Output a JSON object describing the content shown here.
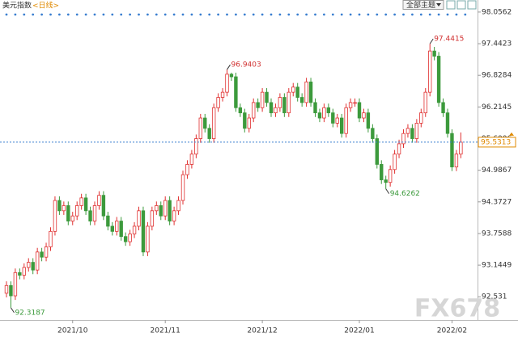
{
  "chart_data": {
    "type": "candlestick",
    "title": "美元指数",
    "subtitle": "<日线>",
    "menu": "全部主题",
    "watermark": "FX678",
    "categories": [
      null,
      null,
      null,
      null,
      null,
      null,
      null,
      null,
      null,
      null,
      null,
      null,
      null,
      null,
      null,
      "2021/10",
      null,
      null,
      null,
      null,
      null,
      null,
      null,
      null,
      null,
      null,
      null,
      null,
      null,
      null,
      null,
      null,
      null,
      null,
      null,
      null,
      "2021/11",
      null,
      null,
      null,
      null,
      null,
      null,
      null,
      null,
      null,
      null,
      null,
      null,
      null,
      null,
      null,
      null,
      null,
      null,
      null,
      null,
      null,
      "2021/12",
      null,
      null,
      null,
      null,
      null,
      null,
      null,
      null,
      null,
      null,
      null,
      null,
      null,
      null,
      null,
      null,
      null,
      null,
      null,
      null,
      null,
      "2022/01",
      null,
      null,
      null,
      null,
      null,
      null,
      null,
      null,
      null,
      null,
      null,
      null,
      null,
      null,
      null,
      null,
      null,
      null,
      null,
      null,
      "2022/02",
      null,
      null
    ],
    "open": [
      92.6,
      92.75,
      92.55,
      93.0,
      92.95,
      93.1,
      93.2,
      93.05,
      93.4,
      93.3,
      93.5,
      93.8,
      94.4,
      94.2,
      94.3,
      94.0,
      94.1,
      94.3,
      94.45,
      94.2,
      94.0,
      94.3,
      94.5,
      94.1,
      93.9,
      93.8,
      94.0,
      93.7,
      93.6,
      93.75,
      93.9,
      94.2,
      93.4,
      93.9,
      94.2,
      94.3,
      94.1,
      94.4,
      94.0,
      94.2,
      94.4,
      94.9,
      95.1,
      95.3,
      95.6,
      96.0,
      95.8,
      95.6,
      96.2,
      96.4,
      96.5,
      96.85,
      96.8,
      96.2,
      96.1,
      95.8,
      96.0,
      96.3,
      96.2,
      96.5,
      96.3,
      96.1,
      96.2,
      96.4,
      96.1,
      96.5,
      96.6,
      96.4,
      96.3,
      96.7,
      96.3,
      96.1,
      96.0,
      96.2,
      96.1,
      95.9,
      96.0,
      95.7,
      96.2,
      96.3,
      96.3,
      96.0,
      96.1,
      95.8,
      95.6,
      95.1,
      94.8,
      94.75,
      95.0,
      95.3,
      95.5,
      95.7,
      95.8,
      95.6,
      95.9,
      96.1,
      96.5,
      97.3,
      97.2,
      96.3,
      96.1,
      95.7,
      95.05,
      95.3
    ],
    "high": [
      92.83,
      92.83,
      93.08,
      93.08,
      93.18,
      93.28,
      93.28,
      93.48,
      93.48,
      93.58,
      93.88,
      94.48,
      94.48,
      94.38,
      94.38,
      94.18,
      94.38,
      94.53,
      94.53,
      94.28,
      94.38,
      94.58,
      94.58,
      94.18,
      93.98,
      94.08,
      94.08,
      93.78,
      93.83,
      93.98,
      94.28,
      94.28,
      93.98,
      94.28,
      94.38,
      94.38,
      94.48,
      94.48,
      94.28,
      94.48,
      94.98,
      95.18,
      95.38,
      95.68,
      96.08,
      96.08,
      95.88,
      96.28,
      96.48,
      96.58,
      96.9403,
      96.88,
      96.88,
      96.28,
      96.18,
      96.08,
      96.38,
      96.38,
      96.58,
      96.58,
      96.38,
      96.28,
      96.48,
      96.48,
      96.58,
      96.68,
      96.68,
      96.48,
      96.78,
      96.78,
      96.38,
      96.18,
      96.28,
      96.28,
      96.18,
      96.08,
      96.08,
      96.28,
      96.38,
      96.38,
      96.38,
      96.18,
      96.18,
      95.88,
      95.68,
      95.18,
      94.88,
      95.08,
      95.38,
      95.58,
      95.78,
      95.88,
      95.88,
      95.98,
      96.18,
      96.58,
      97.4415,
      97.38,
      97.28,
      96.38,
      96.18,
      95.78,
      95.38,
      95.72
    ],
    "low": [
      92.52,
      92.3187,
      92.47,
      92.87,
      92.87,
      93.02,
      92.97,
      92.97,
      93.22,
      93.22,
      93.42,
      93.72,
      94.12,
      94.12,
      93.92,
      93.92,
      94.02,
      94.22,
      94.12,
      93.92,
      93.92,
      94.22,
      94.02,
      93.82,
      93.72,
      93.72,
      93.62,
      93.52,
      93.52,
      93.67,
      93.82,
      93.32,
      93.32,
      93.82,
      94.12,
      94.02,
      94.02,
      93.92,
      93.92,
      94.12,
      94.32,
      94.82,
      95.02,
      95.22,
      95.52,
      95.72,
      95.52,
      95.52,
      96.12,
      96.32,
      96.42,
      96.72,
      96.12,
      96.02,
      95.72,
      95.72,
      95.92,
      96.12,
      96.12,
      96.22,
      96.02,
      96.02,
      96.12,
      96.02,
      96.02,
      96.42,
      96.32,
      96.22,
      96.22,
      96.22,
      96.02,
      95.92,
      95.92,
      96.02,
      95.82,
      95.82,
      95.62,
      95.62,
      96.12,
      96.22,
      95.92,
      95.92,
      95.72,
      95.52,
      95.02,
      94.72,
      94.6262,
      94.67,
      94.92,
      95.22,
      95.42,
      95.62,
      95.52,
      95.52,
      95.82,
      96.02,
      96.42,
      97.12,
      96.22,
      96.02,
      95.62,
      94.97,
      94.97,
      95.22
    ],
    "close": [
      92.75,
      92.55,
      93.0,
      92.95,
      93.1,
      93.2,
      93.05,
      93.4,
      93.3,
      93.5,
      93.8,
      94.4,
      94.2,
      94.3,
      94.0,
      94.1,
      94.3,
      94.45,
      94.2,
      94.0,
      94.3,
      94.5,
      94.1,
      93.9,
      93.8,
      94.0,
      93.7,
      93.6,
      93.75,
      93.9,
      94.2,
      93.4,
      93.9,
      94.2,
      94.3,
      94.1,
      94.4,
      94.0,
      94.2,
      94.4,
      94.9,
      95.1,
      95.3,
      95.6,
      96.0,
      95.8,
      95.6,
      96.2,
      96.4,
      96.5,
      96.85,
      96.8,
      96.2,
      96.1,
      95.8,
      96.0,
      96.3,
      96.2,
      96.5,
      96.3,
      96.1,
      96.2,
      96.4,
      96.1,
      96.5,
      96.6,
      96.4,
      96.3,
      96.7,
      96.3,
      96.1,
      96.0,
      96.2,
      96.1,
      95.9,
      96.0,
      95.7,
      96.2,
      96.3,
      96.3,
      96.0,
      96.1,
      95.8,
      95.6,
      95.1,
      94.8,
      94.75,
      95.0,
      95.3,
      95.5,
      95.7,
      95.8,
      95.6,
      95.9,
      96.1,
      96.5,
      97.3,
      97.2,
      96.3,
      96.1,
      95.7,
      95.05,
      95.3,
      95.5313
    ],
    "up_color": "#e03030",
    "down_color": "#3c9a3c",
    "ylim": [
      92.08,
      98.29
    ],
    "yticks": [
      92.531,
      93.1449,
      93.7588,
      94.3727,
      94.9867,
      95.6006,
      96.2145,
      96.8284,
      97.4423,
      98.0562
    ],
    "last": 95.5313,
    "annotations": [
      96.9403,
      97.4415,
      94.6262,
      92.3187
    ]
  }
}
